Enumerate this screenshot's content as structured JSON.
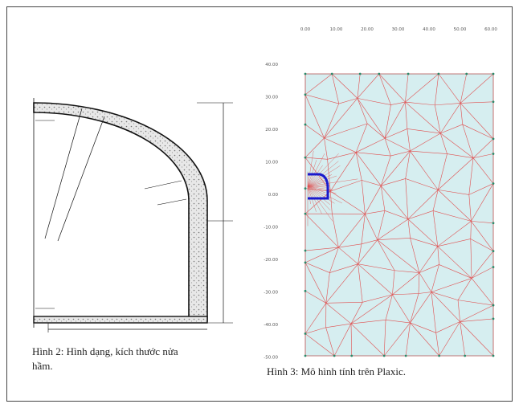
{
  "figure_left": {
    "caption": "Hình 2: Hình dạng, kích thước nửa hầm."
  },
  "figure_right": {
    "caption": "Hình 3: Mô hình tính trên Plaxic.",
    "top_ticks": [
      "0.00",
      "10.00",
      "20.00",
      "30.00",
      "40.00",
      "50.00",
      "60.00"
    ],
    "left_ticks": [
      "40.00",
      "30.00",
      "20.00",
      "10.00",
      "0.00",
      "-10.00",
      "-20.00",
      "-30.00",
      "-40.00",
      "-50.00"
    ]
  }
}
